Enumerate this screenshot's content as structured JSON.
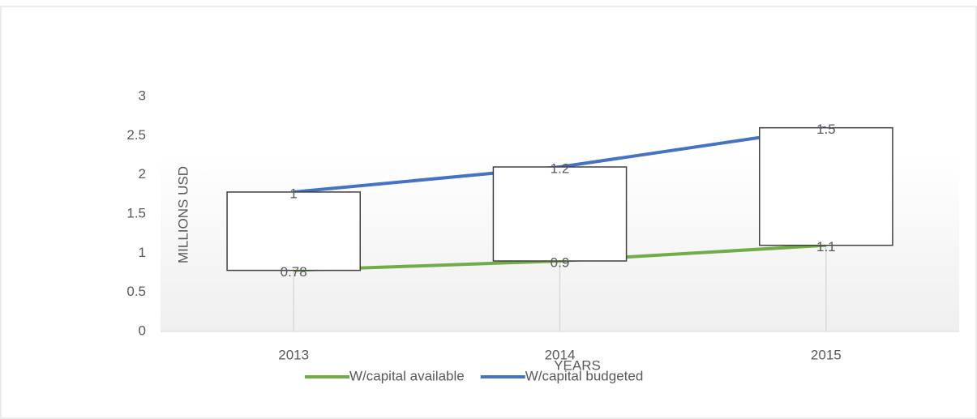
{
  "chart_data": {
    "type": "line",
    "stacked": true,
    "up_down_bars": true,
    "drop_lines": true,
    "categories": [
      "2013",
      "2014",
      "2015"
    ],
    "series": [
      {
        "name": "W/capital available",
        "color": "#70ad47",
        "values": [
          0.78,
          0.9,
          1.1
        ]
      },
      {
        "name": "W/capital budgeted",
        "color": "#4472c4",
        "values": [
          1,
          1.2,
          1.5
        ]
      }
    ],
    "ylim": [
      0,
      3
    ],
    "yticks": [
      0,
      0.5,
      1,
      1.5,
      2,
      2.5,
      3
    ],
    "x_label": "YEARS",
    "y_label": "MILLIONS USD",
    "legend": "bottom",
    "data_labels": true
  }
}
